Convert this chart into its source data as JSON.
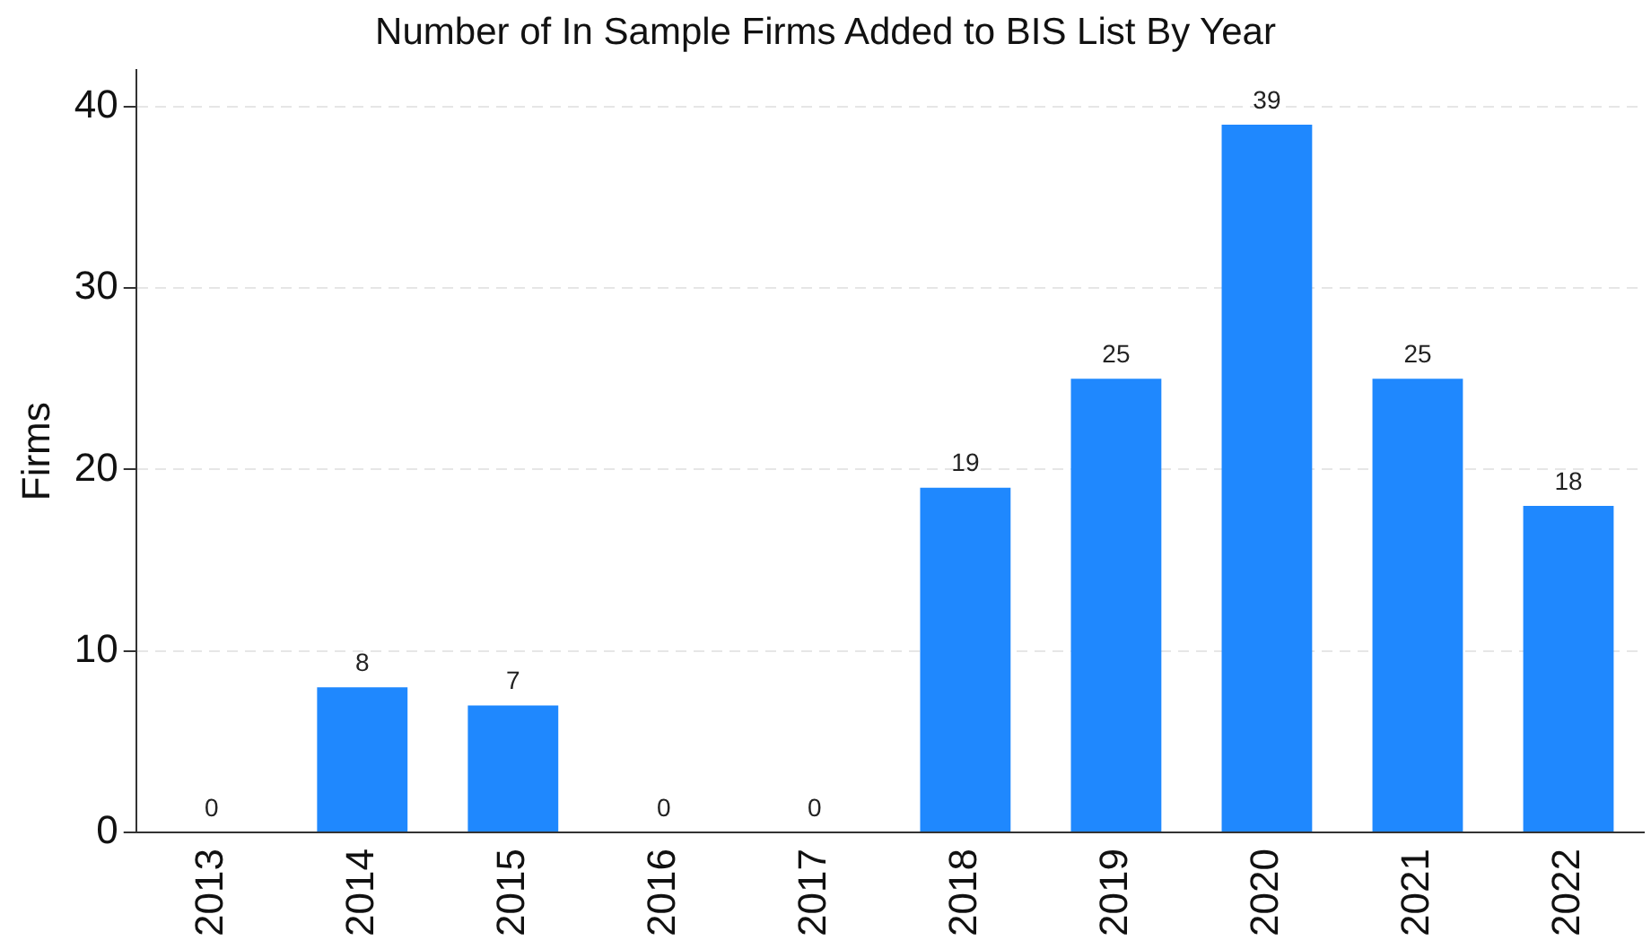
{
  "chart_data": {
    "type": "bar",
    "title": "Number of In Sample Firms Added to BIS List By Year",
    "ylabel": "Firms",
    "categories": [
      "2013",
      "2014",
      "2015",
      "2016",
      "2017",
      "2018",
      "2019",
      "2020",
      "2021",
      "2022"
    ],
    "values": [
      0,
      8,
      7,
      0,
      0,
      19,
      25,
      39,
      25,
      18
    ],
    "color": "#1f88fe",
    "ylim": [
      0,
      42
    ],
    "yticks": [
      0,
      10,
      20,
      30,
      40
    ],
    "grid": "y",
    "legend": false,
    "data_labels": true
  }
}
